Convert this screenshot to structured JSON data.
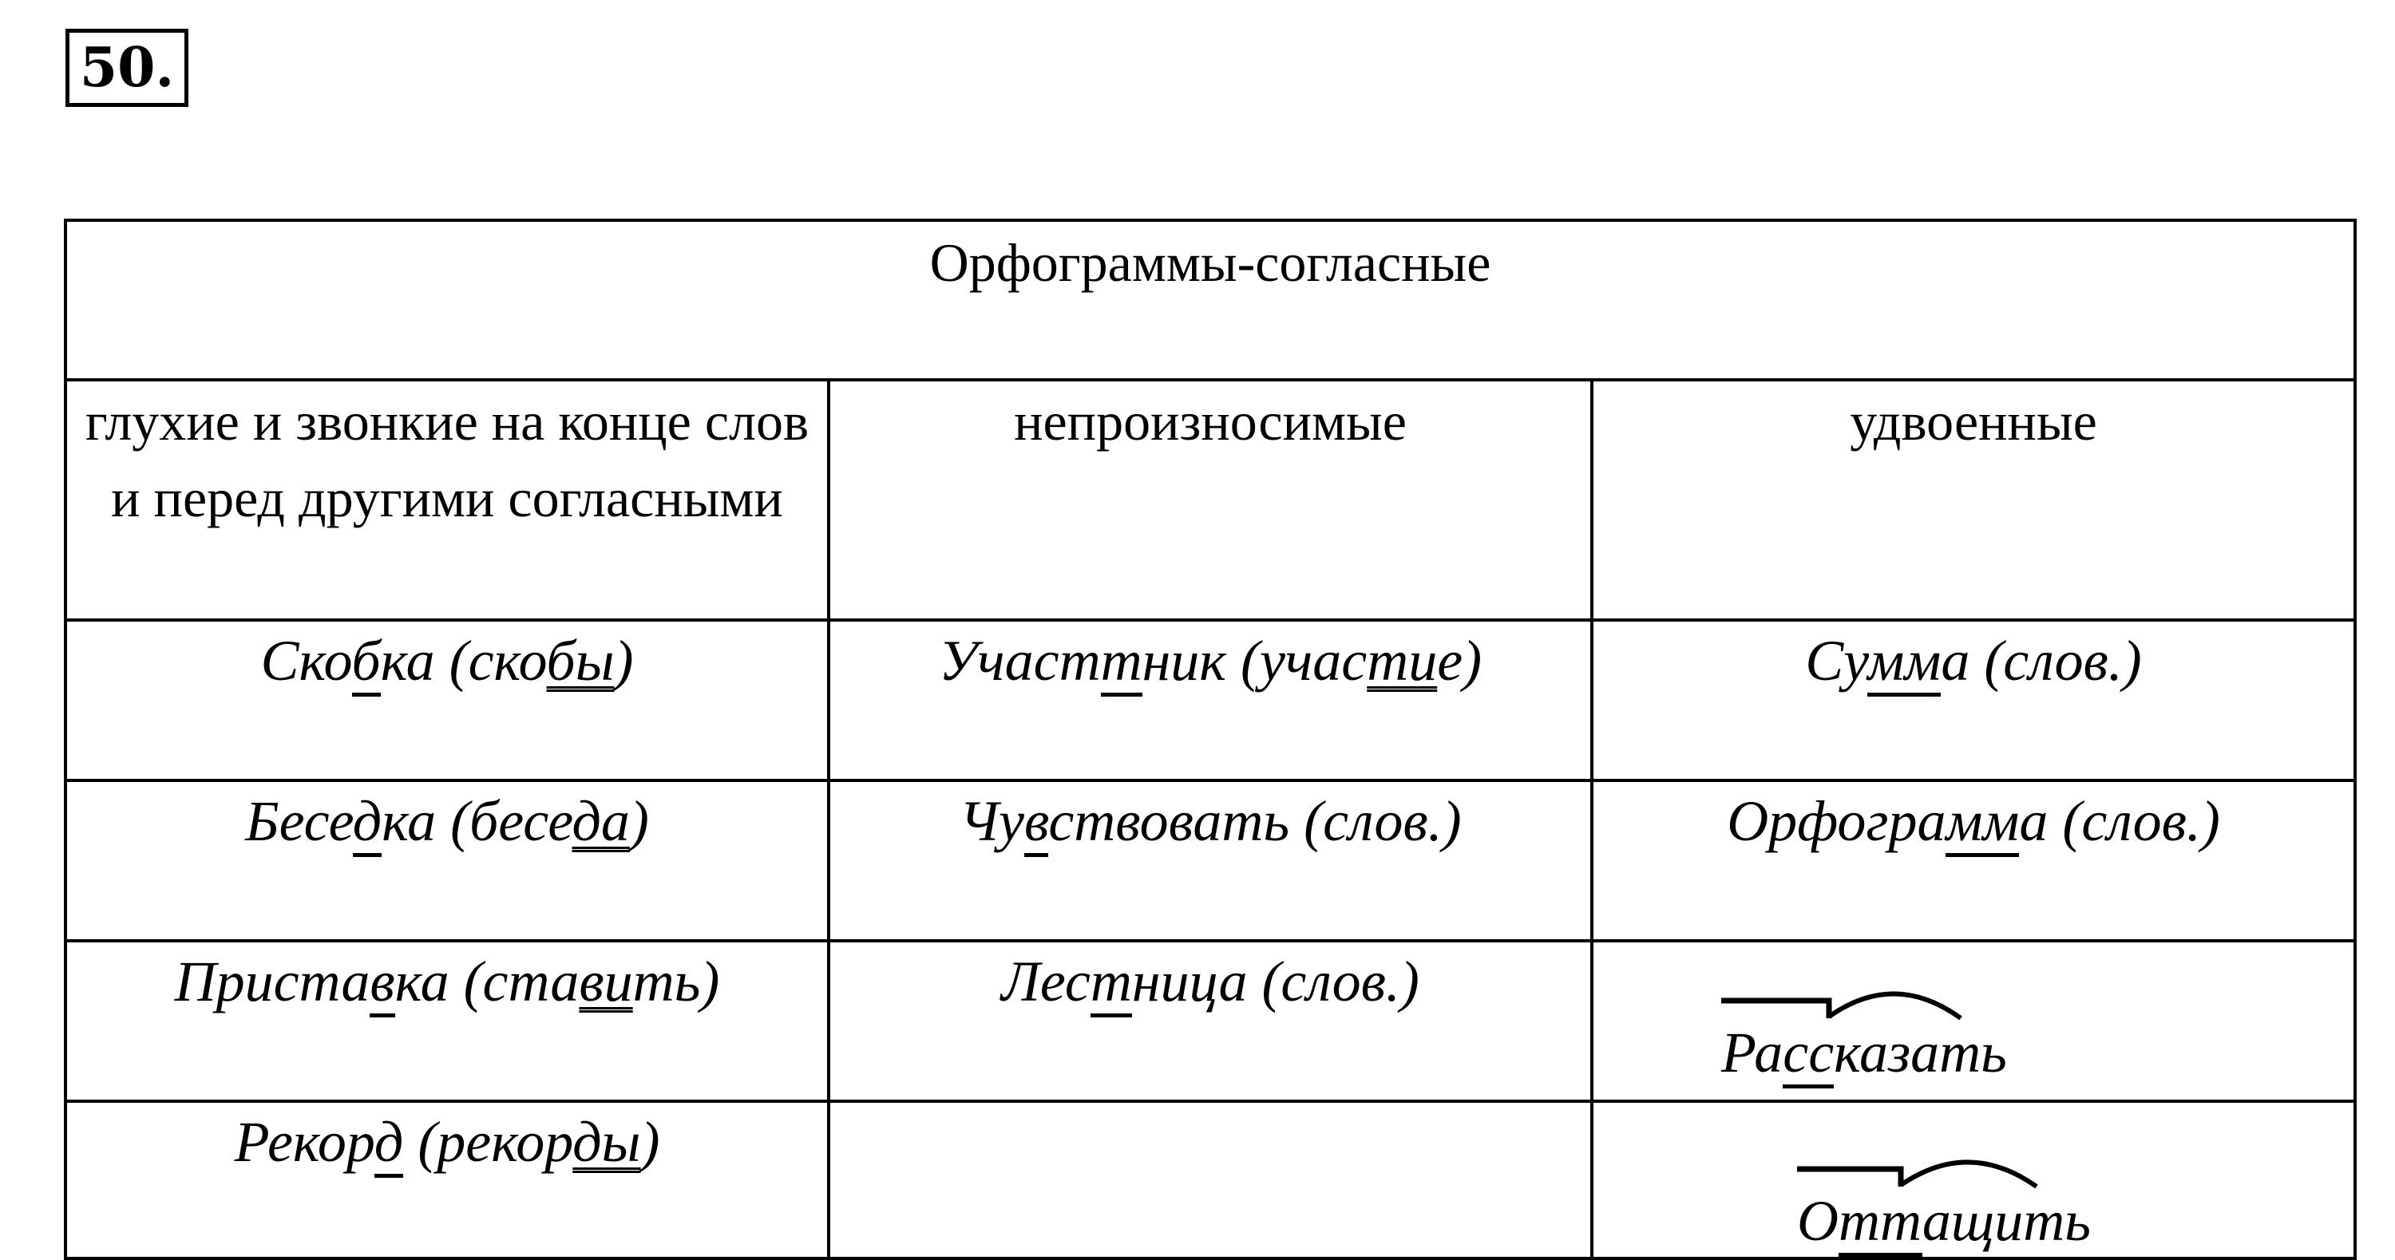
{
  "exercise_number": "50.",
  "table": {
    "title": "Орфограммы-согласные",
    "columns": [
      "глухие и звонкие на конце слов и перед другими согласными",
      "непроизносимые",
      "удвоенные"
    ],
    "rows": [
      [
        [
          {
            "t": "Ско"
          },
          {
            "t": "б",
            "u": 1
          },
          {
            "t": "ка (ско"
          },
          {
            "t": "бы",
            "u": 2
          },
          {
            "t": ")"
          }
        ],
        [
          {
            "t": "Участ"
          },
          {
            "t": "т",
            "u": 1
          },
          {
            "t": "ник (учас"
          },
          {
            "t": "ти",
            "u": 2
          },
          {
            "t": "е)"
          }
        ],
        [
          {
            "t": "Су"
          },
          {
            "t": "мм",
            "u": 1
          },
          {
            "t": "а (слов.)"
          }
        ]
      ],
      [
        [
          {
            "t": "Бесе"
          },
          {
            "t": "д",
            "u": 1
          },
          {
            "t": "ка (бесе"
          },
          {
            "t": "да",
            "u": 2
          },
          {
            "t": ")"
          }
        ],
        [
          {
            "t": "Чу"
          },
          {
            "t": "в",
            "u": 1
          },
          {
            "t": "ствовать (слов.)"
          }
        ],
        [
          {
            "t": "Орфогра"
          },
          {
            "t": "мм",
            "u": 1
          },
          {
            "t": "а (слов.)"
          }
        ]
      ],
      [
        [
          {
            "t": "Приста"
          },
          {
            "t": "в",
            "u": 1
          },
          {
            "t": "ка (ста"
          },
          {
            "t": "ви",
            "u": 2
          },
          {
            "t": "ть)"
          }
        ],
        [
          {
            "t": "Лес"
          },
          {
            "t": "т",
            "u": 1
          },
          {
            "t": "ница (слов.)"
          }
        ],
        [
          {
            "t": "Ра",
            "morph": true
          },
          {
            "t": "сс",
            "u": 1
          },
          {
            "t": "казать"
          }
        ]
      ],
      [
        [
          {
            "t": "Рекор"
          },
          {
            "t": "д",
            "u": 1
          },
          {
            "t": " (рекор"
          },
          {
            "t": "ды",
            "u": 2
          },
          {
            "t": ")"
          }
        ],
        [],
        [
          {
            "t": "О",
            "morph": true
          },
          {
            "t": "тт",
            "u": 1
          },
          {
            "t": "ащить"
          }
        ]
      ]
    ]
  }
}
